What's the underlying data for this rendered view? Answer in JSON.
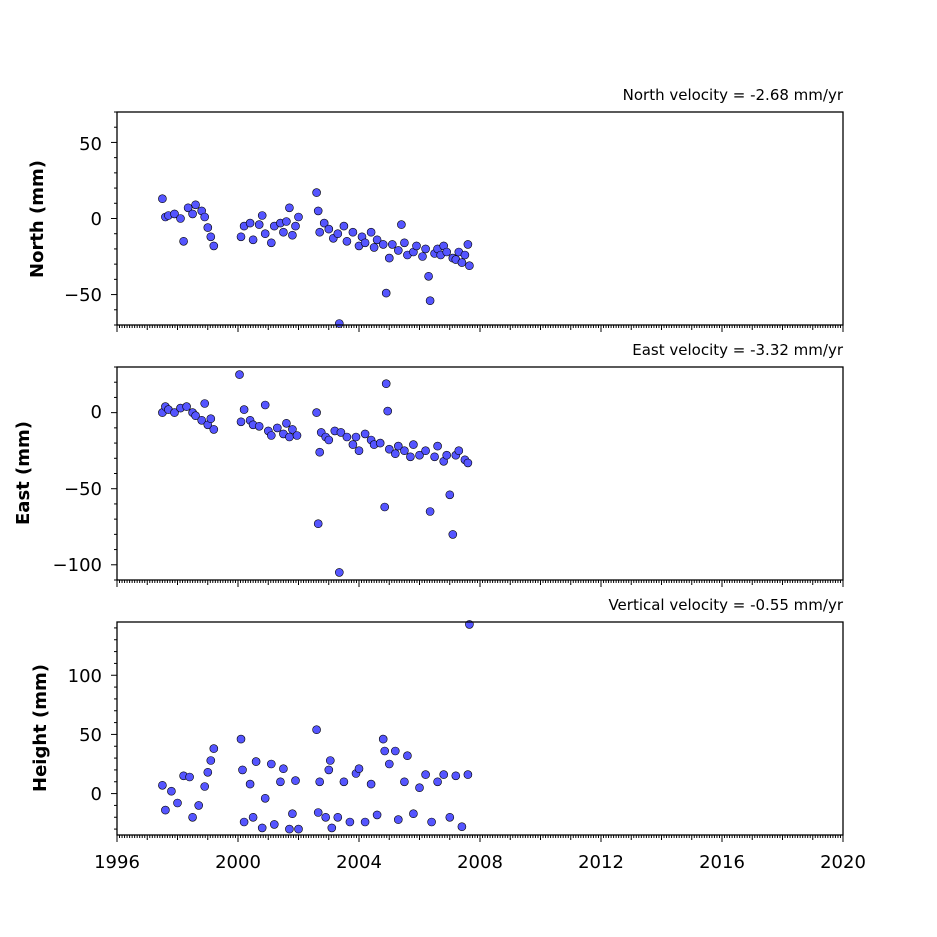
{
  "chart_data": [
    {
      "type": "scatter",
      "title": "North velocity = -2.68 mm/yr",
      "xlabel": "",
      "ylabel": "North (mm)",
      "xlim": [
        1996,
        2020
      ],
      "ylim": [
        -70,
        70
      ],
      "yticks": [
        50,
        0,
        -50
      ],
      "ytick_labels": [
        "50",
        "0",
        "−50"
      ],
      "grid": false,
      "marker_color": "#5555ff",
      "marker_edge": "#000000",
      "points": [
        [
          1997.5,
          13
        ],
        [
          1997.6,
          1
        ],
        [
          1997.7,
          2
        ],
        [
          1997.9,
          3
        ],
        [
          1998.1,
          0
        ],
        [
          1998.2,
          -15
        ],
        [
          1998.35,
          7
        ],
        [
          1998.5,
          3
        ],
        [
          1998.6,
          9
        ],
        [
          1998.8,
          5
        ],
        [
          1998.9,
          1
        ],
        [
          1999.0,
          -6
        ],
        [
          1999.1,
          -12
        ],
        [
          1999.2,
          -18
        ],
        [
          2000.1,
          -12
        ],
        [
          2000.2,
          -5
        ],
        [
          2000.4,
          -3
        ],
        [
          2000.5,
          -14
        ],
        [
          2000.7,
          -4
        ],
        [
          2000.8,
          2
        ],
        [
          2000.9,
          -10
        ],
        [
          2001.1,
          -16
        ],
        [
          2001.2,
          -5
        ],
        [
          2001.4,
          -3
        ],
        [
          2001.5,
          -9
        ],
        [
          2001.6,
          -2
        ],
        [
          2001.7,
          7
        ],
        [
          2001.8,
          -11
        ],
        [
          2001.9,
          -5
        ],
        [
          2002.0,
          1
        ],
        [
          2002.6,
          17
        ],
        [
          2002.65,
          5
        ],
        [
          2002.7,
          -9
        ],
        [
          2002.85,
          -3
        ],
        [
          2003.0,
          -7
        ],
        [
          2003.15,
          -13
        ],
        [
          2003.3,
          -10
        ],
        [
          2003.35,
          -69
        ],
        [
          2003.5,
          -5
        ],
        [
          2003.6,
          -15
        ],
        [
          2003.8,
          -9
        ],
        [
          2004.0,
          -18
        ],
        [
          2004.1,
          -12
        ],
        [
          2004.2,
          -16
        ],
        [
          2004.4,
          -9
        ],
        [
          2004.5,
          -19
        ],
        [
          2004.6,
          -14
        ],
        [
          2004.8,
          -17
        ],
        [
          2004.9,
          -49
        ],
        [
          2005.0,
          -26
        ],
        [
          2005.1,
          -17
        ],
        [
          2005.3,
          -21
        ],
        [
          2005.4,
          -4
        ],
        [
          2005.5,
          -16
        ],
        [
          2005.6,
          -24
        ],
        [
          2005.8,
          -22
        ],
        [
          2005.9,
          -18
        ],
        [
          2006.1,
          -25
        ],
        [
          2006.2,
          -20
        ],
        [
          2006.3,
          -38
        ],
        [
          2006.35,
          -54
        ],
        [
          2006.5,
          -23
        ],
        [
          2006.6,
          -20
        ],
        [
          2006.7,
          -24
        ],
        [
          2006.8,
          -18
        ],
        [
          2006.9,
          -22
        ],
        [
          2007.1,
          -26
        ],
        [
          2007.2,
          -27
        ],
        [
          2007.3,
          -22
        ],
        [
          2007.4,
          -29
        ],
        [
          2007.5,
          -24
        ],
        [
          2007.6,
          -17
        ],
        [
          2007.65,
          -31
        ]
      ]
    },
    {
      "type": "scatter",
      "title": "East velocity = -3.32 mm/yr",
      "xlabel": "",
      "ylabel": "East (mm)",
      "xlim": [
        1996,
        2020
      ],
      "ylim": [
        -110,
        30
      ],
      "yticks": [
        0,
        -50,
        -100
      ],
      "ytick_labels": [
        "0",
        "−50",
        "−100"
      ],
      "grid": false,
      "marker_color": "#5555ff",
      "marker_edge": "#000000",
      "points": [
        [
          1997.5,
          0
        ],
        [
          1997.6,
          4
        ],
        [
          1997.7,
          2
        ],
        [
          1997.9,
          0
        ],
        [
          1998.1,
          3
        ],
        [
          1998.3,
          4
        ],
        [
          1998.5,
          0
        ],
        [
          1998.6,
          -2
        ],
        [
          1998.8,
          -5
        ],
        [
          1998.9,
          6
        ],
        [
          1999.0,
          -8
        ],
        [
          1999.1,
          -4
        ],
        [
          1999.2,
          -11
        ],
        [
          2000.05,
          25
        ],
        [
          2000.1,
          -6
        ],
        [
          2000.2,
          2
        ],
        [
          2000.4,
          -5
        ],
        [
          2000.5,
          -8
        ],
        [
          2000.7,
          -9
        ],
        [
          2000.9,
          5
        ],
        [
          2001.0,
          -12
        ],
        [
          2001.1,
          -15
        ],
        [
          2001.3,
          -10
        ],
        [
          2001.5,
          -14
        ],
        [
          2001.6,
          -7
        ],
        [
          2001.7,
          -16
        ],
        [
          2001.8,
          -11
        ],
        [
          2001.95,
          -15
        ],
        [
          2002.6,
          0
        ],
        [
          2002.65,
          -73
        ],
        [
          2002.7,
          -26
        ],
        [
          2002.75,
          -13
        ],
        [
          2002.9,
          -16
        ],
        [
          2003.0,
          -18
        ],
        [
          2003.2,
          -12
        ],
        [
          2003.35,
          -105
        ],
        [
          2003.4,
          -13
        ],
        [
          2003.6,
          -16
        ],
        [
          2003.8,
          -21
        ],
        [
          2003.9,
          -16
        ],
        [
          2004.0,
          -25
        ],
        [
          2004.2,
          -14
        ],
        [
          2004.4,
          -18
        ],
        [
          2004.5,
          -21
        ],
        [
          2004.7,
          -20
        ],
        [
          2004.85,
          -62
        ],
        [
          2004.9,
          19
        ],
        [
          2004.95,
          1
        ],
        [
          2005.0,
          -24
        ],
        [
          2005.2,
          -27
        ],
        [
          2005.3,
          -22
        ],
        [
          2005.5,
          -25
        ],
        [
          2005.7,
          -29
        ],
        [
          2005.8,
          -21
        ],
        [
          2006.0,
          -28
        ],
        [
          2006.2,
          -25
        ],
        [
          2006.35,
          -65
        ],
        [
          2006.5,
          -29
        ],
        [
          2006.6,
          -22
        ],
        [
          2006.8,
          -32
        ],
        [
          2006.9,
          -28
        ],
        [
          2007.0,
          -54
        ],
        [
          2007.1,
          -80
        ],
        [
          2007.2,
          -28
        ],
        [
          2007.3,
          -25
        ],
        [
          2007.5,
          -31
        ],
        [
          2007.6,
          -33
        ]
      ]
    },
    {
      "type": "scatter",
      "title": "Vertical velocity = -0.55 mm/yr",
      "xlabel": "",
      "ylabel": "Height (mm)",
      "xlim": [
        1996,
        2020
      ],
      "ylim": [
        -35,
        145
      ],
      "yticks": [
        100,
        50,
        0
      ],
      "ytick_labels": [
        "100",
        "50",
        "0"
      ],
      "xticks": [
        1996,
        2000,
        2004,
        2008,
        2012,
        2016,
        2020
      ],
      "xtick_labels": [
        "1996",
        "2000",
        "2004",
        "2008",
        "2012",
        "2016",
        "2020"
      ],
      "grid": false,
      "marker_color": "#5555ff",
      "marker_edge": "#000000",
      "points": [
        [
          1997.5,
          7
        ],
        [
          1997.6,
          -14
        ],
        [
          1997.8,
          2
        ],
        [
          1998.0,
          -8
        ],
        [
          1998.2,
          15
        ],
        [
          1998.4,
          14
        ],
        [
          1998.5,
          -20
        ],
        [
          1998.7,
          -10
        ],
        [
          1998.9,
          6
        ],
        [
          1999.0,
          18
        ],
        [
          1999.1,
          28
        ],
        [
          1999.2,
          38
        ],
        [
          2000.1,
          46
        ],
        [
          2000.15,
          20
        ],
        [
          2000.2,
          -24
        ],
        [
          2000.4,
          8
        ],
        [
          2000.5,
          -20
        ],
        [
          2000.6,
          27
        ],
        [
          2000.8,
          -29
        ],
        [
          2000.9,
          -4
        ],
        [
          2001.1,
          25
        ],
        [
          2001.2,
          -26
        ],
        [
          2001.4,
          10
        ],
        [
          2001.5,
          21
        ],
        [
          2001.7,
          -30
        ],
        [
          2001.8,
          -17
        ],
        [
          2001.9,
          11
        ],
        [
          2002.0,
          -30
        ],
        [
          2002.6,
          54
        ],
        [
          2002.65,
          -16
        ],
        [
          2002.7,
          10
        ],
        [
          2002.9,
          -20
        ],
        [
          2003.0,
          20
        ],
        [
          2003.05,
          28
        ],
        [
          2003.1,
          -29
        ],
        [
          2003.3,
          -20
        ],
        [
          2003.5,
          10
        ],
        [
          2003.7,
          -24
        ],
        [
          2003.9,
          17
        ],
        [
          2004.0,
          21
        ],
        [
          2004.2,
          -24
        ],
        [
          2004.4,
          8
        ],
        [
          2004.6,
          -18
        ],
        [
          2004.8,
          46
        ],
        [
          2004.85,
          36
        ],
        [
          2005.0,
          25
        ],
        [
          2005.2,
          36
        ],
        [
          2005.3,
          -22
        ],
        [
          2005.5,
          10
        ],
        [
          2005.6,
          32
        ],
        [
          2005.8,
          -17
        ],
        [
          2006.0,
          5
        ],
        [
          2006.2,
          16
        ],
        [
          2006.4,
          -24
        ],
        [
          2006.6,
          10
        ],
        [
          2006.8,
          16
        ],
        [
          2007.0,
          -20
        ],
        [
          2007.2,
          15
        ],
        [
          2007.4,
          -28
        ],
        [
          2007.6,
          16
        ],
        [
          2007.65,
          143
        ]
      ]
    }
  ]
}
